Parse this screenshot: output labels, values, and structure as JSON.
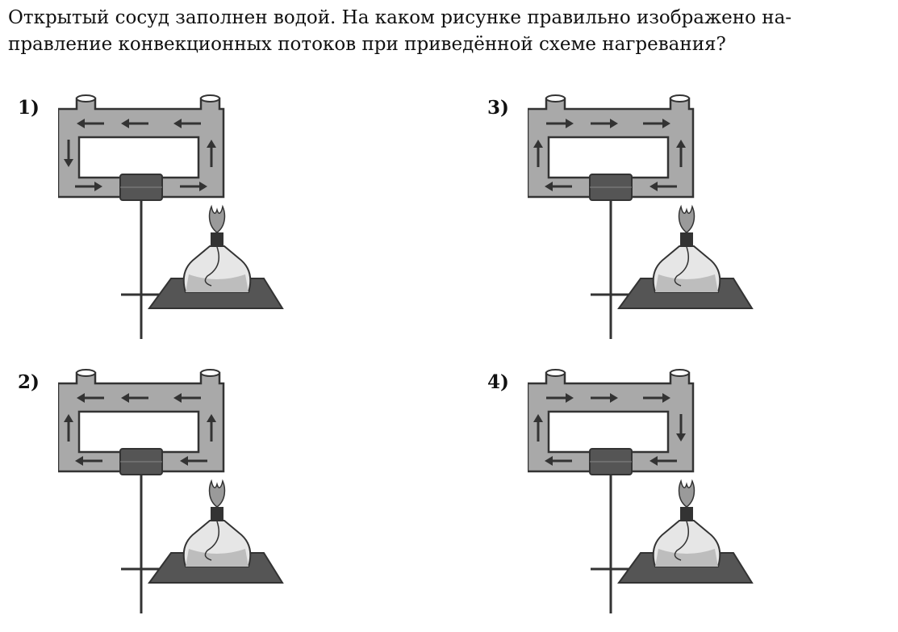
{
  "question": {
    "line1": "Открытый сосуд заполнен водой. На каком рисунке правильно изображено на-",
    "line2": "правление конвекционных потоков при приведённой схеме нагревания?"
  },
  "options": [
    {
      "label": "1)",
      "top": "left",
      "left": "down",
      "right": "up",
      "bottom": "right"
    },
    {
      "label": "2)",
      "top": "left",
      "left": "up",
      "right": "up",
      "bottom": "left"
    },
    {
      "label": "3)",
      "top": "right",
      "left": "up",
      "right": "up",
      "bottom": "left"
    },
    {
      "label": "4)",
      "top": "right",
      "left": "up",
      "right": "down",
      "bottom": "left"
    }
  ],
  "colors": {
    "water": "#a9a9a9",
    "outline": "#333333",
    "arrow": "#333333",
    "base": "#555555",
    "flame": "#9a9a9a"
  }
}
